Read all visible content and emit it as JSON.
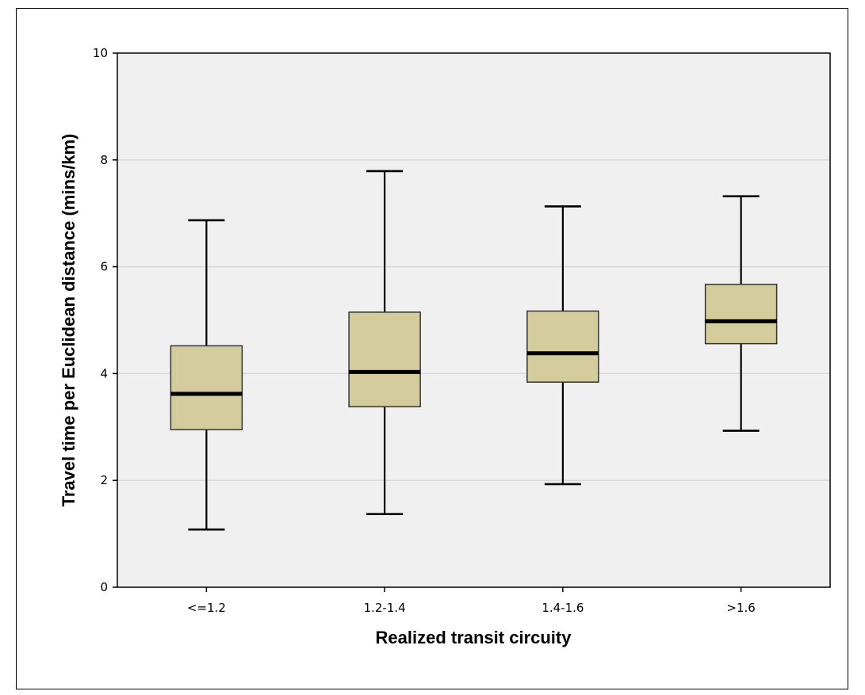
{
  "chart_data": {
    "type": "boxplot",
    "title": "",
    "xlabel": "Realized transit circuity",
    "ylabel": "Travel time per Euclidean distance (mins/km)",
    "ylim": [
      0,
      10
    ],
    "yticks": [
      0,
      2,
      4,
      6,
      8,
      10
    ],
    "grid": true,
    "categories": [
      "<=1.2",
      "1.2-1.4",
      "1.4-1.6",
      ">1.6"
    ],
    "boxes": [
      {
        "category": "<=1.2",
        "min": 1.08,
        "q1": 2.95,
        "median": 3.62,
        "q3": 4.52,
        "max": 6.87
      },
      {
        "category": "1.2-1.4",
        "min": 1.37,
        "q1": 3.38,
        "median": 4.03,
        "q3": 5.15,
        "max": 7.79
      },
      {
        "category": "1.4-1.6",
        "min": 1.93,
        "q1": 3.84,
        "median": 4.38,
        "q3": 5.17,
        "max": 7.13
      },
      {
        "category": ">1.6",
        "min": 2.93,
        "q1": 4.56,
        "median": 4.98,
        "q3": 5.67,
        "max": 7.32
      }
    ],
    "colors": {
      "box_fill": "#d4cc9c",
      "plot_background": "#f0f0f0",
      "grid": "#d9d9d9",
      "stroke": "#000000"
    }
  }
}
